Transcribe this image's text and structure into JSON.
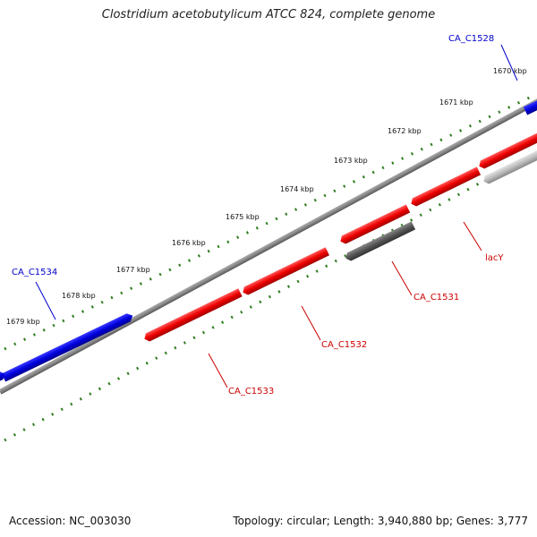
{
  "title": "Clostridium acetobutylicum ATCC 824, complete genome",
  "footer": {
    "accession": "Accession: NC_003030",
    "topology": "Topology: circular; Length: 3,940,880 bp; Genes: 3,777"
  },
  "ruler": {
    "ticks": [
      "1670 kbp",
      "1671 kbp",
      "1672 kbp",
      "1673 kbp",
      "1674 kbp",
      "1675 kbp",
      "1676 kbp",
      "1677 kbp",
      "1678 kbp",
      "1679 kbp"
    ]
  },
  "genes": [
    {
      "label": "CA_C1528",
      "color": "#0000cc",
      "strand": "forward"
    },
    {
      "label": "CA_C1534",
      "color": "#0000cc",
      "strand": "forward"
    },
    {
      "label": "lacY",
      "color": "#cc0000",
      "strand": "reverse"
    },
    {
      "label": "CA_C1531",
      "color": "#cc0000",
      "strand": "reverse"
    },
    {
      "label": "CA_C1532",
      "color": "#cc0000",
      "strand": "reverse"
    },
    {
      "label": "CA_C1533",
      "color": "#cc0000",
      "strand": "reverse"
    }
  ],
  "colors": {
    "forward_gene": "#0000dd",
    "reverse_gene": "#ee0000",
    "other_gene_dark": "#555555",
    "other_gene_light": "#bbbbbb",
    "backbone": "#888888",
    "ruler_ticks": "#2e7d20"
  }
}
